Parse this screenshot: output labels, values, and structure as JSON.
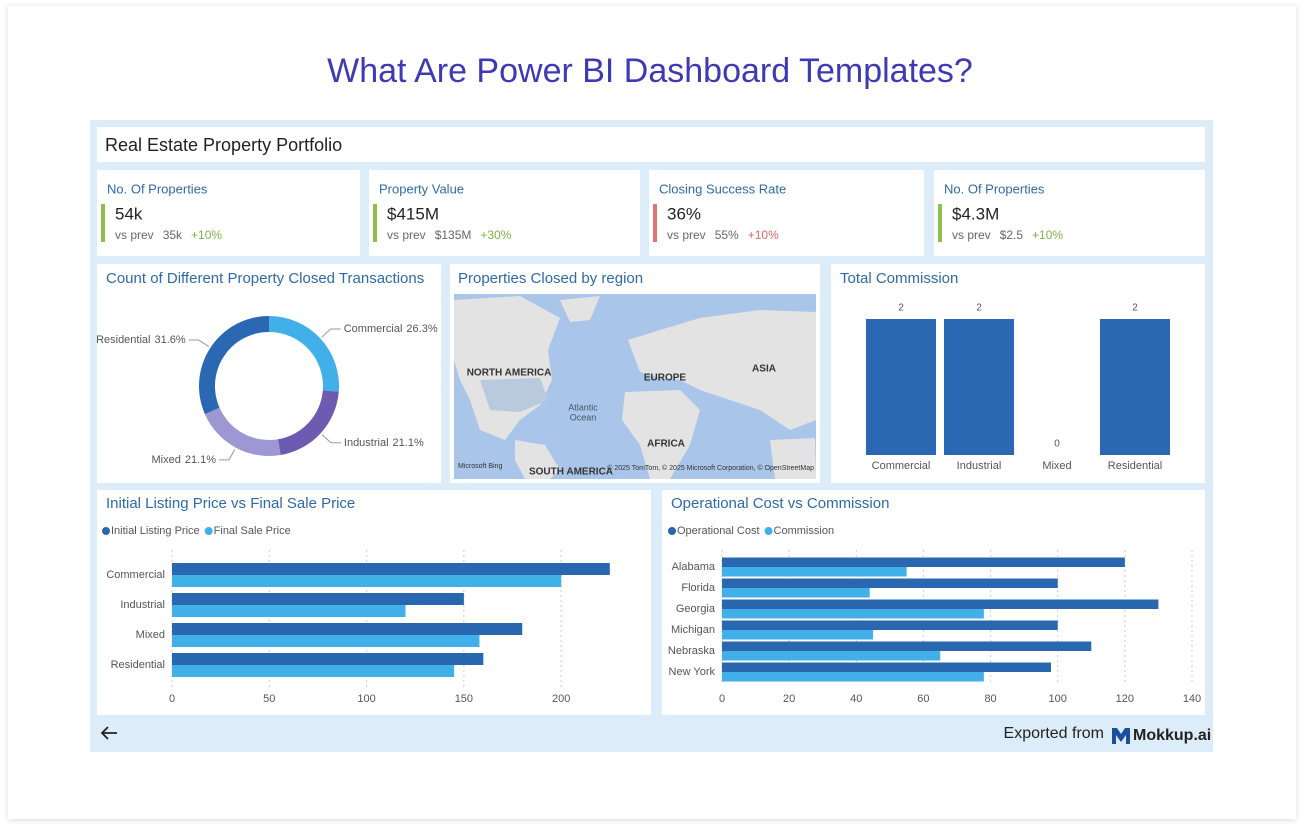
{
  "header": {
    "title": "What Are Power BI Dashboard Templates?"
  },
  "dashboard": {
    "title": "Real Estate Property Portfolio"
  },
  "kpis": [
    {
      "title": "No. Of Properties",
      "value": "54k",
      "prev_label": "vs prev",
      "prev": "35k",
      "change": "+10%",
      "color": "#8bc34a",
      "change_color": "#7cb342"
    },
    {
      "title": "Property Value",
      "value": "$415M",
      "prev_label": "vs prev",
      "prev": "$135M",
      "change": "+30%",
      "color": "#8bc34a",
      "change_color": "#7cb342"
    },
    {
      "title": "Closing Success Rate",
      "value": "36%",
      "prev_label": "vs prev",
      "prev": "55%",
      "change": "+10%",
      "color": "#e57373",
      "change_color": "#e06666"
    },
    {
      "title": "No. Of Properties",
      "value": "$4.3M",
      "prev_label": "vs prev",
      "prev": "$2.5",
      "change": "+10%",
      "color": "#8bc34a",
      "change_color": "#7cb342"
    }
  ],
  "chart_data": [
    {
      "type": "pie",
      "title": "Count of Different Property Closed Transactions",
      "categories": [
        "Commercial",
        "Industrial",
        "Mixed",
        "Residential"
      ],
      "values": [
        26.3,
        21.1,
        21.1,
        31.6
      ],
      "value_labels": [
        "26.3%",
        "21.1%",
        "21.1%",
        "31.6%"
      ],
      "colors": [
        "#41b0e8",
        "#6c5bb0",
        "#9d97d3",
        "#2b68b3"
      ]
    },
    {
      "type": "bar",
      "title": "Total Commission",
      "categories": [
        "Commercial",
        "Industrial",
        "Mixed",
        "Residential"
      ],
      "values": [
        2,
        2,
        0,
        2
      ],
      "color": "#2b68b3"
    },
    {
      "type": "hbar",
      "title": "Initial Listing Price vs Final Sale Price",
      "categories": [
        "Commercial",
        "Industrial",
        "Mixed",
        "Residential"
      ],
      "series": [
        {
          "name": "Initial Listing Price",
          "color": "#2a67b1",
          "values": [
            225,
            150,
            180,
            160
          ]
        },
        {
          "name": "Final Sale Price",
          "color": "#41b0e8",
          "values": [
            200,
            120,
            158,
            145
          ]
        }
      ],
      "xlim": [
        0,
        240
      ],
      "xticks": [
        0,
        50,
        100,
        150,
        200
      ],
      "grid": true
    },
    {
      "type": "hbar",
      "title": "Operational Cost vs Commission",
      "categories": [
        "Alabama",
        "Florida",
        "Georgia",
        "Michigan",
        "Nebraska",
        "New York"
      ],
      "series": [
        {
          "name": "Operational Cost",
          "color": "#2a67b1",
          "values": [
            120,
            100,
            130,
            100,
            110,
            98
          ]
        },
        {
          "name": "Commission",
          "color": "#41b0e8",
          "values": [
            55,
            44,
            78,
            45,
            65,
            78
          ]
        }
      ],
      "xlim": [
        0,
        140
      ],
      "xticks": [
        0,
        20,
        40,
        60,
        80,
        100,
        120,
        140
      ],
      "grid": true
    }
  ],
  "map": {
    "title": "Properties Closed by region",
    "labels": [
      "NORTH AMERICA",
      "EUROPE",
      "ASIA",
      "Atlantic",
      "Ocean",
      "AFRICA",
      "SOUTH AMERICA"
    ],
    "provider": "Microsoft Bing",
    "attribution": "© 2025 TomTom, © 2025 Microsoft Corporation, © OpenStreetMap"
  },
  "footer": {
    "text": "Exported from",
    "brand": "Mokkup.ai"
  }
}
